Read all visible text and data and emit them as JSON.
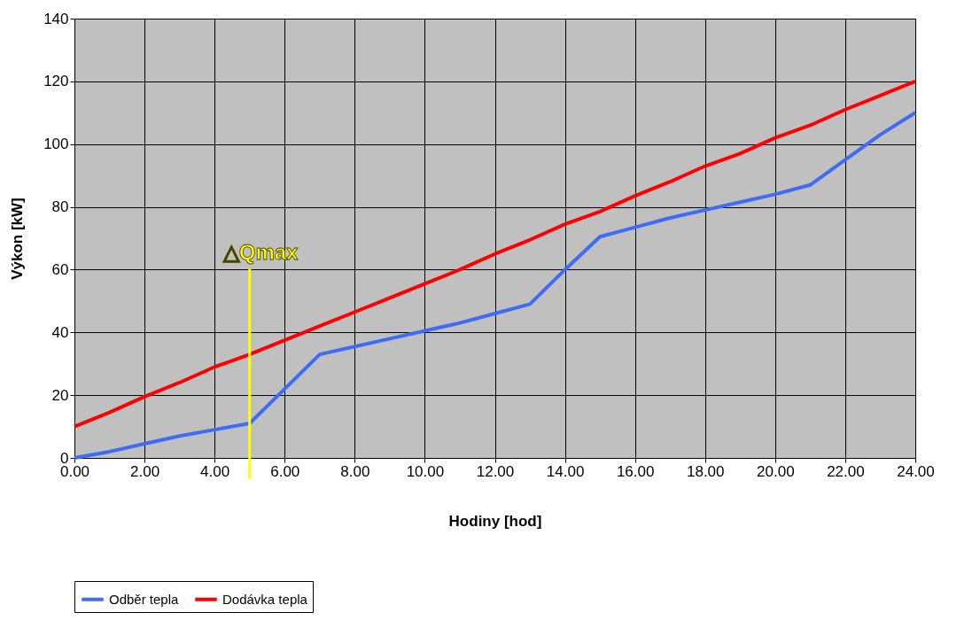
{
  "chart_data": {
    "type": "line",
    "xlabel": "Hodiny [hod]",
    "ylabel": "Výkon [kW]",
    "x": [
      0,
      1,
      2,
      3,
      4,
      5,
      6,
      7,
      8,
      9,
      10,
      11,
      12,
      13,
      14,
      15,
      16,
      17,
      18,
      19,
      20,
      21,
      22,
      23,
      24
    ],
    "series": [
      {
        "name": "Odběr tepla",
        "color": "#3f6cf5",
        "values": [
          0,
          2,
          4.5,
          7,
          9,
          11,
          22,
          33,
          35.5,
          38,
          40.5,
          43,
          46,
          49,
          60,
          70.5,
          73.5,
          76.5,
          79,
          81.5,
          84,
          87,
          95,
          103,
          110
        ]
      },
      {
        "name": "Dodávka tepla",
        "color": "#ff0000",
        "values": [
          10,
          14.5,
          19.5,
          24,
          29,
          33,
          37.5,
          42,
          46.5,
          51,
          55.5,
          60,
          65,
          69.5,
          74.5,
          78.5,
          83.5,
          88,
          93,
          97,
          102,
          106,
          111,
          115.5,
          120
        ]
      }
    ],
    "xlim": [
      0,
      24
    ],
    "xticks": [
      {
        "value": 0,
        "label": "0.00"
      },
      {
        "value": 2,
        "label": "2.00"
      },
      {
        "value": 4,
        "label": "4.00"
      },
      {
        "value": 6,
        "label": "6.00"
      },
      {
        "value": 8,
        "label": "8.00"
      },
      {
        "value": 10,
        "label": "10.00"
      },
      {
        "value": 12,
        "label": "12.00"
      },
      {
        "value": 14,
        "label": "14.00"
      },
      {
        "value": 16,
        "label": "16.00"
      },
      {
        "value": 18,
        "label": "18.00"
      },
      {
        "value": 20,
        "label": "20.00"
      },
      {
        "value": 22,
        "label": "22.00"
      },
      {
        "value": 24,
        "label": "24.00"
      }
    ],
    "ylim": [
      0,
      140
    ],
    "yticks": [
      0,
      20,
      40,
      60,
      80,
      100,
      120,
      140
    ],
    "ref_lines": [
      {
        "axis": "x",
        "value": 5,
        "label": "△Qmax",
        "color": "#ffff00"
      }
    ],
    "grid": true,
    "legend": "bottom",
    "marker": "none",
    "line_style": "solid"
  }
}
